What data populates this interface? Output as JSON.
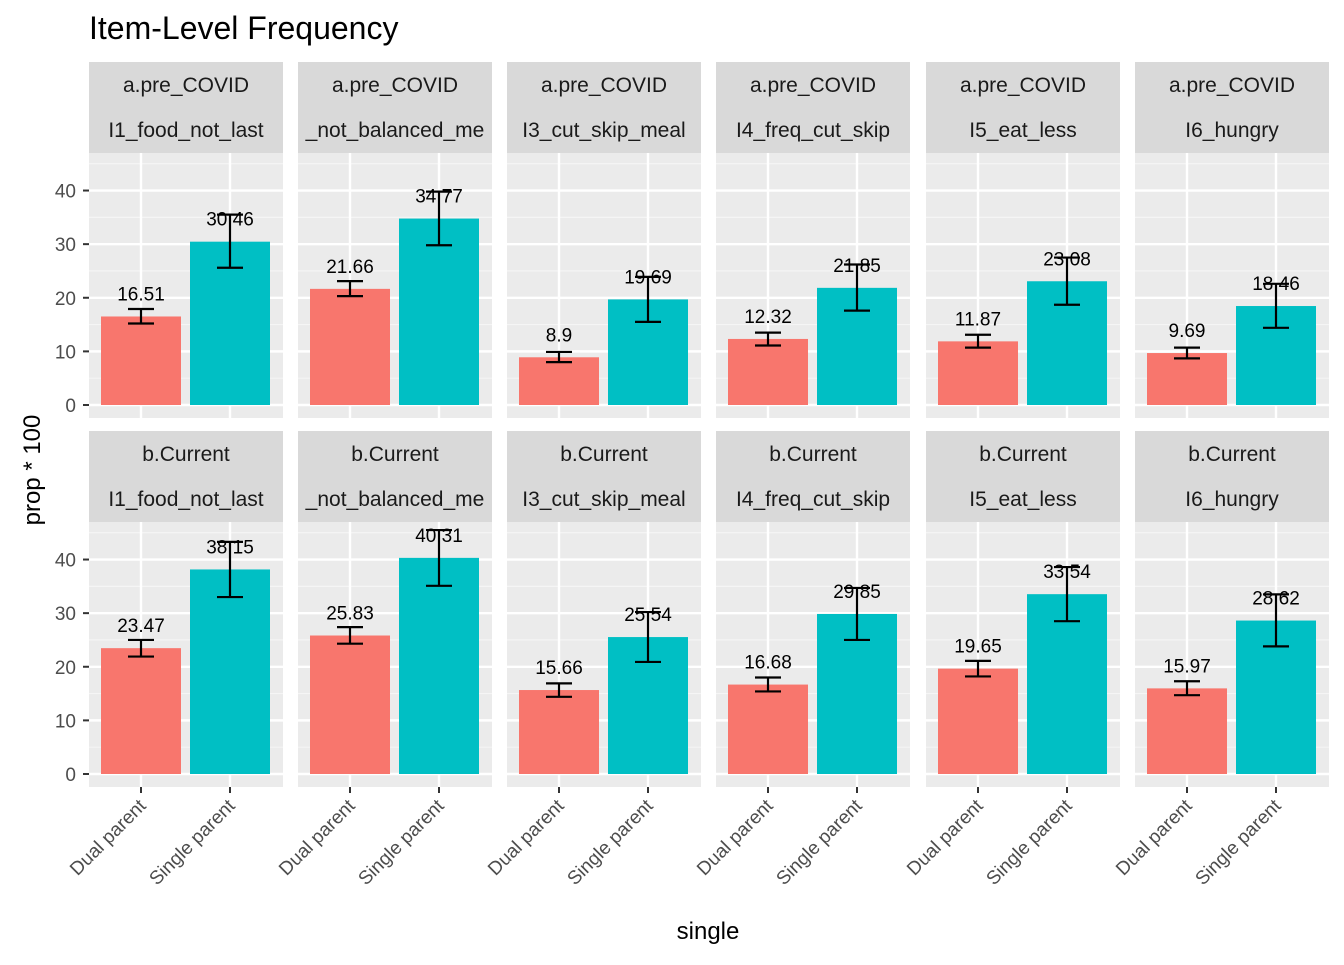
{
  "chart_data": {
    "type": "bar",
    "title": "Item-Level Frequency",
    "xlabel": "single",
    "ylabel": "prop * 100",
    "ylim": [
      0,
      47
    ],
    "yticks": [
      0,
      10,
      20,
      30,
      40
    ],
    "categories": [
      "Dual parent",
      "Single parent"
    ],
    "series_colors": {
      "Dual parent": "#F8766D",
      "Single parent": "#00BFC4"
    },
    "grid": true,
    "legend": "none",
    "panel_rows": [
      "a.pre_COVID",
      "b.Current"
    ],
    "panel_cols": [
      "I1_food_not_last",
      "_not_balanced_me",
      "I3_cut_skip_meal",
      "I4_freq_cut_skip",
      "I5_eat_less",
      "I6_hungry"
    ],
    "panels": [
      {
        "row": "a.pre_COVID",
        "col": "I1_food_not_last",
        "values": [
          16.51,
          30.46
        ],
        "labels": [
          "16.51",
          "30.46"
        ],
        "ci": [
          [
            15.2,
            17.9
          ],
          [
            25.6,
            35.5
          ]
        ]
      },
      {
        "row": "a.pre_COVID",
        "col": "_not_balanced_me",
        "values": [
          21.66,
          34.77
        ],
        "labels": [
          "21.66",
          "34.77"
        ],
        "ci": [
          [
            20.3,
            23.1
          ],
          [
            29.8,
            39.8
          ]
        ]
      },
      {
        "row": "a.pre_COVID",
        "col": "I3_cut_skip_meal",
        "values": [
          8.9,
          19.69
        ],
        "labels": [
          "8.9",
          "19.69"
        ],
        "ci": [
          [
            8.0,
            9.9
          ],
          [
            15.5,
            23.9
          ]
        ]
      },
      {
        "row": "a.pre_COVID",
        "col": "I4_freq_cut_skip",
        "values": [
          12.32,
          21.85
        ],
        "labels": [
          "12.32",
          "21.85"
        ],
        "ci": [
          [
            11.1,
            13.5
          ],
          [
            17.6,
            26.2
          ]
        ]
      },
      {
        "row": "a.pre_COVID",
        "col": "I5_eat_less",
        "values": [
          11.87,
          23.08
        ],
        "labels": [
          "11.87",
          "23.08"
        ],
        "ci": [
          [
            10.7,
            13.1
          ],
          [
            18.7,
            27.5
          ]
        ]
      },
      {
        "row": "a.pre_COVID",
        "col": "I6_hungry",
        "values": [
          9.69,
          18.46
        ],
        "labels": [
          "9.69",
          "18.46"
        ],
        "ci": [
          [
            8.7,
            10.7
          ],
          [
            14.4,
            22.6
          ]
        ]
      },
      {
        "row": "b.Current",
        "col": "I1_food_not_last",
        "values": [
          23.47,
          38.15
        ],
        "labels": [
          "23.47",
          "38.15"
        ],
        "ci": [
          [
            21.9,
            25.0
          ],
          [
            33.0,
            43.3
          ]
        ]
      },
      {
        "row": "b.Current",
        "col": "_not_balanced_me",
        "values": [
          25.83,
          40.31
        ],
        "labels": [
          "25.83",
          "40.31"
        ],
        "ci": [
          [
            24.3,
            27.4
          ],
          [
            35.1,
            45.5
          ]
        ]
      },
      {
        "row": "b.Current",
        "col": "I3_cut_skip_meal",
        "values": [
          15.66,
          25.54
        ],
        "labels": [
          "15.66",
          "25.54"
        ],
        "ci": [
          [
            14.4,
            16.9
          ],
          [
            20.9,
            30.2
          ]
        ]
      },
      {
        "row": "b.Current",
        "col": "I4_freq_cut_skip",
        "values": [
          16.68,
          29.85
        ],
        "labels": [
          "16.68",
          "29.85"
        ],
        "ci": [
          [
            15.4,
            18.0
          ],
          [
            25.0,
            34.7
          ]
        ]
      },
      {
        "row": "b.Current",
        "col": "I5_eat_less",
        "values": [
          19.65,
          33.54
        ],
        "labels": [
          "19.65",
          "33.54"
        ],
        "ci": [
          [
            18.2,
            21.1
          ],
          [
            28.5,
            38.6
          ]
        ]
      },
      {
        "row": "b.Current",
        "col": "I6_hungry",
        "values": [
          15.97,
          28.62
        ],
        "labels": [
          "15.97",
          "28.62"
        ],
        "ci": [
          [
            14.7,
            17.3
          ],
          [
            23.8,
            33.5
          ]
        ]
      }
    ]
  }
}
